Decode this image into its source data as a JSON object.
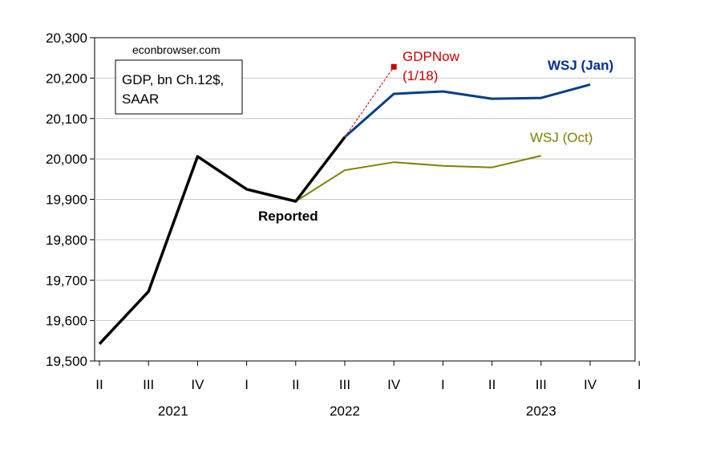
{
  "chart_data": {
    "type": "line",
    "source_text": "econbrowser.com",
    "legend_text": [
      "GDP, bn Ch.12$,",
      "SAAR"
    ],
    "ylim": [
      19500,
      20300
    ],
    "yticks": [
      "19,500",
      "19,600",
      "19,700",
      "19,800",
      "19,900",
      "20,000",
      "20,100",
      "20,200",
      "20,300"
    ],
    "ytick_values": [
      19500,
      19600,
      19700,
      19800,
      19900,
      20000,
      20100,
      20200,
      20300
    ],
    "xtick_labels": [
      "II",
      "III",
      "IV",
      "I",
      "II",
      "III",
      "IV",
      "I",
      "II",
      "III",
      "IV",
      "I"
    ],
    "year_labels": [
      {
        "label": "2021",
        "center_index": 1.5
      },
      {
        "label": "2022",
        "center_index": 5.0
      },
      {
        "label": "2023",
        "center_index": 9.0
      }
    ],
    "grid": true,
    "series": [
      {
        "name": "Reported",
        "color": "#000000",
        "points": [
          {
            "q": 0,
            "v": 19542
          },
          {
            "q": 1,
            "v": 19672
          },
          {
            "q": 2,
            "v": 20006
          },
          {
            "q": 3,
            "v": 19925
          },
          {
            "q": 4,
            "v": 19895
          },
          {
            "q": 5,
            "v": 20054
          }
        ]
      },
      {
        "name": "WSJ (Oct)",
        "color": "#808000",
        "points": [
          {
            "q": 4,
            "v": 19895
          },
          {
            "q": 5,
            "v": 19972
          },
          {
            "q": 6,
            "v": 19992
          },
          {
            "q": 7,
            "v": 19983
          },
          {
            "q": 8,
            "v": 19979
          },
          {
            "q": 9,
            "v": 20008
          }
        ]
      },
      {
        "name": "WSJ (Jan)",
        "color": "#003f87",
        "points": [
          {
            "q": 5,
            "v": 20054
          },
          {
            "q": 6,
            "v": 20161
          },
          {
            "q": 7,
            "v": 20167
          },
          {
            "q": 8,
            "v": 20149
          },
          {
            "q": 9,
            "v": 20151
          },
          {
            "q": 10,
            "v": 20184
          }
        ]
      },
      {
        "name": "GDPNow",
        "date_label": "(1/18)",
        "color": "#cc0000",
        "points": [
          {
            "q": 5,
            "v": 20054
          },
          {
            "q": 6,
            "v": 20228
          }
        ]
      }
    ]
  }
}
